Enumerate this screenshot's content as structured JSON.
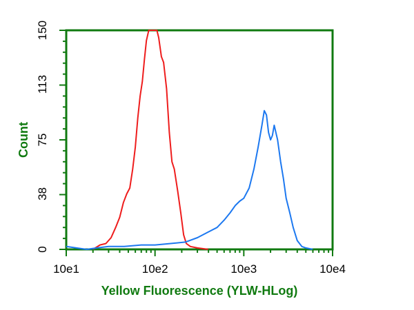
{
  "colors": {
    "axis": "#107a10",
    "tick_text": "#000000"
  },
  "chart_data": {
    "type": "line",
    "title": "",
    "xlabel": "Yellow Fluorescence (YLW-HLog)",
    "ylabel": "Count",
    "x_scale": "log",
    "xlim": [
      10,
      10000
    ],
    "ylim": [
      0,
      150
    ],
    "x_ticks": [
      {
        "value": 10,
        "label": "10e1"
      },
      {
        "value": 100,
        "label": "10e2"
      },
      {
        "value": 1000,
        "label": "10e3"
      },
      {
        "value": 10000,
        "label": "10e4"
      }
    ],
    "y_ticks": [
      {
        "value": 0,
        "label": "0"
      },
      {
        "value": 38,
        "label": "38"
      },
      {
        "value": 75,
        "label": "75"
      },
      {
        "value": 113,
        "label": "113"
      },
      {
        "value": 150,
        "label": "150"
      }
    ],
    "grid": false,
    "series": [
      {
        "color": "#ee1c1c",
        "x": [
          20,
          24,
          28,
          32,
          36,
          40,
          44,
          48,
          52,
          56,
          60,
          64,
          68,
          72,
          76,
          80,
          85,
          90,
          95,
          100,
          105,
          110,
          118,
          125,
          135,
          145,
          155,
          165,
          180,
          195,
          210,
          225,
          250,
          300,
          400
        ],
        "y": [
          0,
          3,
          4,
          8,
          15,
          22,
          32,
          38,
          42,
          55,
          70,
          90,
          105,
          115,
          130,
          143,
          150,
          150,
          150,
          150,
          150,
          145,
          132,
          128,
          110,
          80,
          60,
          55,
          40,
          25,
          10,
          4,
          2,
          1,
          0
        ]
      },
      {
        "color": "#1c78f0",
        "x": [
          10,
          13,
          17,
          22,
          30,
          45,
          70,
          100,
          150,
          220,
          300,
          400,
          500,
          600,
          700,
          800,
          900,
          1000,
          1150,
          1300,
          1450,
          1600,
          1700,
          1800,
          1900,
          2000,
          2100,
          2200,
          2400,
          2600,
          2800,
          3000,
          3300,
          3600,
          4000,
          4500,
          5000,
          6000
        ],
        "y": [
          2,
          1,
          0,
          1,
          2,
          2,
          3,
          3,
          4,
          5,
          8,
          12,
          15,
          20,
          25,
          30,
          33,
          35,
          42,
          55,
          70,
          85,
          95,
          92,
          80,
          75,
          78,
          85,
          75,
          60,
          48,
          35,
          25,
          15,
          6,
          2,
          1,
          0
        ]
      }
    ]
  }
}
